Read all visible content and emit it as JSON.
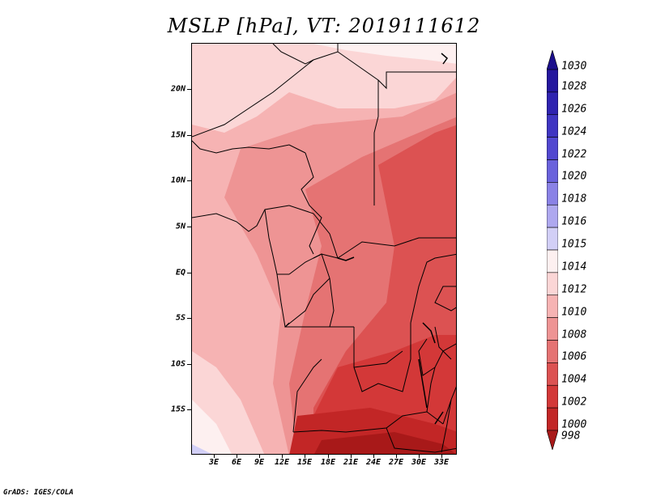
{
  "title": "MSLP [hPa], VT: 2019111612",
  "credit": "GrADS: IGES/COLA",
  "map": {
    "lon_range": [
      0,
      35
    ],
    "lat_range": [
      -20,
      25
    ],
    "lat_ticks": [
      {
        "value": 20,
        "label": "20N"
      },
      {
        "value": 15,
        "label": "15N"
      },
      {
        "value": 10,
        "label": "10N"
      },
      {
        "value": 5,
        "label": "5N"
      },
      {
        "value": 0,
        "label": "EQ"
      },
      {
        "value": -5,
        "label": "5S"
      },
      {
        "value": -10,
        "label": "10S"
      },
      {
        "value": -15,
        "label": "15S"
      }
    ],
    "lon_ticks": [
      {
        "value": 3,
        "label": "3E"
      },
      {
        "value": 6,
        "label": "6E"
      },
      {
        "value": 9,
        "label": "9E"
      },
      {
        "value": 12,
        "label": "12E"
      },
      {
        "value": 15,
        "label": "15E"
      },
      {
        "value": 18,
        "label": "18E"
      },
      {
        "value": 21,
        "label": "21E"
      },
      {
        "value": 24,
        "label": "24E"
      },
      {
        "value": 27,
        "label": "27E"
      },
      {
        "value": 30,
        "label": "30E"
      },
      {
        "value": 33,
        "label": "33E"
      }
    ]
  },
  "colorbar": {
    "levels": [
      {
        "label": "1030",
        "color": "#1c0f8c"
      },
      {
        "label": "1028",
        "color": "#24179e"
      },
      {
        "label": "1026",
        "color": "#2f23b0"
      },
      {
        "label": "1024",
        "color": "#3f35c2"
      },
      {
        "label": "1022",
        "color": "#5248d0"
      },
      {
        "label": "1020",
        "color": "#6a62dc"
      },
      {
        "label": "1018",
        "color": "#8a82e6"
      },
      {
        "label": "1016",
        "color": "#aea8ef"
      },
      {
        "label": "1015",
        "color": "#d2cff6"
      },
      {
        "label": "1014",
        "color": "#fdf0f0"
      },
      {
        "label": "1012",
        "color": "#fbd6d6"
      },
      {
        "label": "1010",
        "color": "#f6b3b3"
      },
      {
        "label": "1008",
        "color": "#ee9494"
      },
      {
        "label": "1006",
        "color": "#e57373"
      },
      {
        "label": "1004",
        "color": "#dc5252"
      },
      {
        "label": "1002",
        "color": "#d33838"
      },
      {
        "label": "1000",
        "color": "#c22626"
      },
      {
        "label": "998",
        "color": "#a81919"
      }
    ]
  }
}
